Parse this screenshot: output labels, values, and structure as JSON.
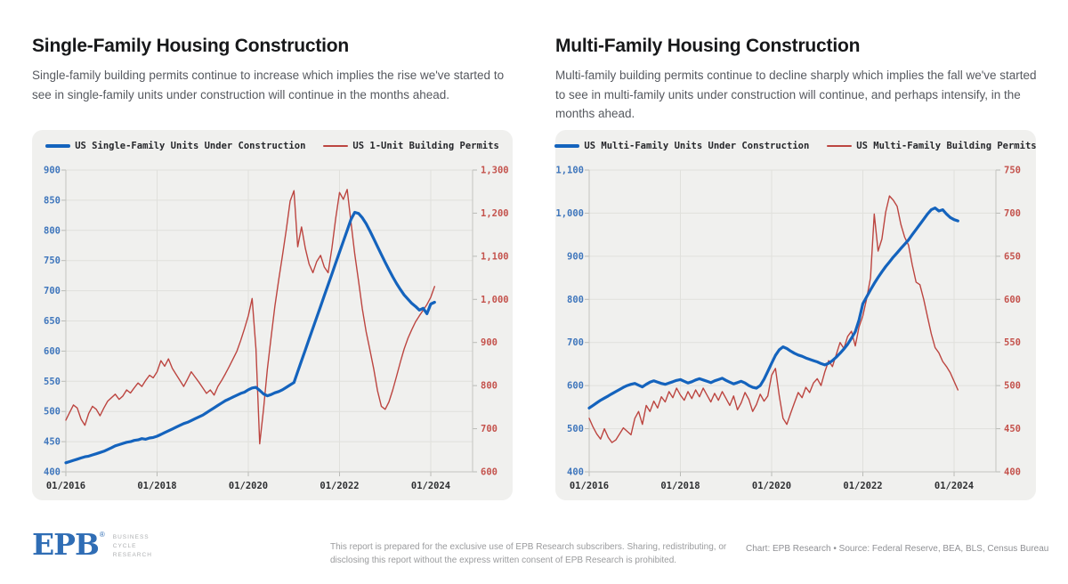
{
  "panels": [
    {
      "title": "Single-Family Housing Construction",
      "subtitle": "Single-family building permits continue to increase which implies the rise we've started to see in single-family units under construction will continue in the months ahead."
    },
    {
      "title": "Multi-Family Housing Construction",
      "subtitle": "Multi-family building permits continue to decline sharply which implies the fall we've started to see in multi-family units under construction will continue, and perhaps intensify, in the months ahead."
    }
  ],
  "chart_data": [
    {
      "type": "line",
      "title": "Single-Family Housing Construction",
      "x_unit": "month",
      "x_start": "2016-01",
      "x_end": "2024-02",
      "x_domain_months": 108,
      "x_tick_months": [
        0,
        24,
        48,
        72,
        96
      ],
      "x_tick_labels": [
        "01/2016",
        "01/2018",
        "01/2020",
        "01/2022",
        "01/2024"
      ],
      "grid": "horizontal-and-year-ticks",
      "left_axis": {
        "min": 400,
        "max": 900,
        "step": 50,
        "color": "#3f76bc",
        "tick_values": [
          400,
          450,
          500,
          550,
          600,
          650,
          700,
          750,
          800,
          850,
          900
        ],
        "tick_labels": [
          "400",
          "450",
          "500",
          "550",
          "600",
          "650",
          "700",
          "750",
          "800",
          "850",
          "900"
        ]
      },
      "right_axis": {
        "min": 600,
        "max": 1300,
        "step": 100,
        "color": "#c4524c",
        "tick_values": [
          600,
          700,
          800,
          900,
          1000,
          1100,
          1200,
          1300
        ],
        "tick_labels": [
          "600",
          "700",
          "800",
          "900",
          "1,000",
          "1,100",
          "1,200",
          "1,300"
        ]
      },
      "series": [
        {
          "name": "US Single-Family Units Under Construction",
          "axis": "left",
          "color": "#1463bd",
          "stroke_width": 3.2,
          "values": [
            415,
            417,
            419,
            421,
            423,
            425,
            426,
            428,
            430,
            432,
            434,
            437,
            440,
            443,
            445,
            447,
            449,
            450,
            452,
            453,
            455,
            454,
            456,
            457,
            459,
            462,
            465,
            468,
            471,
            474,
            477,
            480,
            482,
            485,
            488,
            491,
            494,
            498,
            502,
            506,
            510,
            514,
            518,
            521,
            524,
            527,
            530,
            532,
            536,
            539,
            540,
            535,
            529,
            526,
            528,
            531,
            533,
            536,
            540,
            544,
            548,
            566,
            584,
            602,
            620,
            638,
            656,
            674,
            692,
            710,
            728,
            746,
            764,
            782,
            800,
            818,
            830,
            828,
            821,
            811,
            799,
            786,
            773,
            760,
            747,
            735,
            723,
            712,
            702,
            693,
            686,
            679,
            674,
            668,
            671,
            662,
            678,
            681
          ]
        },
        {
          "name": "US 1-Unit Building Permits",
          "axis": "right",
          "color": "#bc4540",
          "stroke_width": 1.4,
          "values": [
            720,
            738,
            755,
            748,
            722,
            708,
            735,
            752,
            745,
            730,
            748,
            764,
            772,
            780,
            768,
            776,
            790,
            783,
            795,
            806,
            798,
            812,
            824,
            818,
            832,
            858,
            845,
            862,
            840,
            826,
            812,
            798,
            815,
            832,
            820,
            808,
            795,
            782,
            790,
            778,
            798,
            812,
            828,
            845,
            862,
            880,
            905,
            932,
            962,
            1002,
            885,
            665,
            745,
            838,
            912,
            985,
            1046,
            1102,
            1162,
            1228,
            1252,
            1122,
            1168,
            1118,
            1082,
            1062,
            1088,
            1102,
            1075,
            1062,
            1120,
            1188,
            1248,
            1232,
            1255,
            1180,
            1105,
            1042,
            978,
            925,
            882,
            838,
            788,
            752,
            745,
            762,
            790,
            822,
            855,
            885,
            910,
            930,
            948,
            962,
            975,
            988,
            1005,
            1030
          ]
        }
      ]
    },
    {
      "type": "line",
      "title": "Multi-Family Housing Construction",
      "x_unit": "month",
      "x_start": "2016-01",
      "x_end": "2024-02",
      "x_domain_months": 108,
      "x_tick_months": [
        0,
        24,
        48,
        72,
        96
      ],
      "x_tick_labels": [
        "01/2016",
        "01/2018",
        "01/2020",
        "01/2022",
        "01/2024"
      ],
      "grid": "horizontal-and-year-ticks",
      "left_axis": {
        "min": 400,
        "max": 1100,
        "step": 100,
        "color": "#3f76bc",
        "tick_values": [
          400,
          500,
          600,
          700,
          800,
          900,
          1000,
          1100
        ],
        "tick_labels": [
          "400",
          "500",
          "600",
          "700",
          "800",
          "900",
          "1,000",
          "1,100"
        ]
      },
      "right_axis": {
        "min": 400,
        "max": 750,
        "step": 50,
        "color": "#c4524c",
        "tick_values": [
          400,
          450,
          500,
          550,
          600,
          650,
          700,
          750
        ],
        "tick_labels": [
          "400",
          "450",
          "500",
          "550",
          "600",
          "650",
          "700",
          "750"
        ]
      },
      "series": [
        {
          "name": "US Multi-Family Units Under Construction",
          "axis": "left",
          "color": "#1463bd",
          "stroke_width": 3.2,
          "values": [
            548,
            554,
            560,
            566,
            571,
            576,
            581,
            586,
            591,
            596,
            600,
            603,
            605,
            601,
            597,
            603,
            608,
            611,
            608,
            605,
            603,
            606,
            609,
            612,
            614,
            610,
            606,
            609,
            613,
            616,
            613,
            610,
            607,
            611,
            614,
            617,
            612,
            608,
            604,
            607,
            610,
            606,
            600,
            596,
            594,
            600,
            615,
            633,
            652,
            670,
            683,
            690,
            686,
            680,
            675,
            671,
            668,
            664,
            661,
            658,
            655,
            651,
            648,
            652,
            658,
            666,
            675,
            685,
            696,
            710,
            725,
            752,
            790,
            806,
            822,
            837,
            851,
            864,
            876,
            887,
            898,
            908,
            918,
            928,
            938,
            950,
            962,
            974,
            986,
            998,
            1008,
            1012,
            1005,
            1008,
            998,
            990,
            985,
            982
          ]
        },
        {
          "name": "US Multi-Family Building Permits",
          "axis": "right",
          "color": "#bc4540",
          "stroke_width": 1.4,
          "values": [
            462,
            452,
            444,
            438,
            450,
            440,
            434,
            437,
            444,
            451,
            447,
            443,
            462,
            470,
            455,
            477,
            470,
            482,
            474,
            487,
            481,
            493,
            486,
            497,
            489,
            483,
            493,
            485,
            495,
            487,
            497,
            489,
            481,
            491,
            483,
            493,
            485,
            477,
            488,
            472,
            480,
            492,
            484,
            470,
            478,
            490,
            482,
            488,
            512,
            520,
            488,
            462,
            455,
            468,
            480,
            492,
            486,
            498,
            492,
            503,
            508,
            500,
            516,
            529,
            522,
            536,
            550,
            543,
            557,
            563,
            546,
            568,
            581,
            601,
            625,
            699,
            656,
            670,
            701,
            720,
            715,
            708,
            687,
            672,
            663,
            640,
            620,
            617,
            600,
            580,
            560,
            544,
            538,
            528,
            522,
            515,
            505,
            495
          ]
        }
      ]
    }
  ],
  "footer": {
    "logo_text": "EPB",
    "logo_registered": "®",
    "logo_sub_lines": [
      "Business",
      "Cycle",
      "Research"
    ],
    "disclaimer": "This report is prepared for the exclusive use of EPB Research subscribers. Sharing, redistributing, or disclosing this report without the express written consent of EPB Research is prohibited.",
    "credit": "Chart: EPB Research  •  Source: Federal Reserve, BEA, BLS, Census Bureau"
  },
  "colors": {
    "page_background": "#ffffff",
    "card_background": "#f0f0ee",
    "gridline": "#e0e0dc",
    "axis_frame": "#c3c4c0",
    "blue_series": "#1463bd",
    "red_series": "#bc4540",
    "left_axis_label": "#3f76bc",
    "right_axis_label": "#c4524c",
    "logo_blue": "#2f6db5"
  }
}
